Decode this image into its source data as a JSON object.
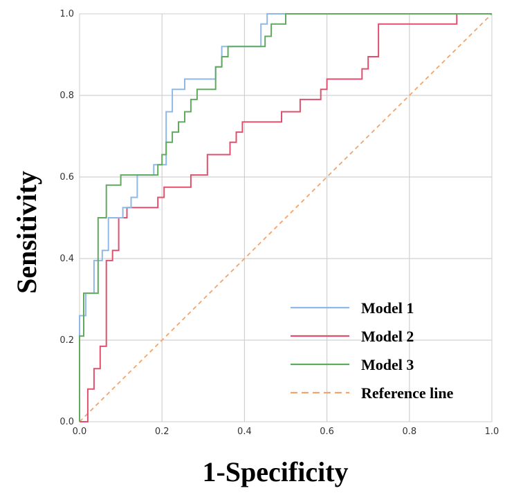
{
  "chart_data": {
    "type": "line",
    "title": "",
    "xlabel": "1-Specificity",
    "ylabel": "Sensitivity",
    "xlim": [
      0,
      1
    ],
    "ylim": [
      0,
      1
    ],
    "grid": true,
    "legend_position": "bottom-right",
    "xticks": [
      "0.0",
      "0.2",
      "0.4",
      "0.6",
      "0.8",
      "1.0"
    ],
    "yticks": [
      "0.0",
      "0.2",
      "0.4",
      "0.6",
      "0.8",
      "1.0"
    ],
    "series": [
      {
        "name": "Model 1",
        "color": "#8fb8e6",
        "dashed": false,
        "points": [
          [
            0,
            0
          ],
          [
            0,
            0.26
          ],
          [
            0.015,
            0.26
          ],
          [
            0.015,
            0.315
          ],
          [
            0.035,
            0.315
          ],
          [
            0.035,
            0.395
          ],
          [
            0.055,
            0.395
          ],
          [
            0.055,
            0.42
          ],
          [
            0.07,
            0.42
          ],
          [
            0.07,
            0.5
          ],
          [
            0.105,
            0.5
          ],
          [
            0.105,
            0.525
          ],
          [
            0.125,
            0.525
          ],
          [
            0.125,
            0.55
          ],
          [
            0.14,
            0.55
          ],
          [
            0.14,
            0.605
          ],
          [
            0.165,
            0.605
          ],
          [
            0.165,
            0.605
          ],
          [
            0.18,
            0.605
          ],
          [
            0.18,
            0.63
          ],
          [
            0.21,
            0.63
          ],
          [
            0.21,
            0.76
          ],
          [
            0.225,
            0.76
          ],
          [
            0.225,
            0.815
          ],
          [
            0.255,
            0.815
          ],
          [
            0.255,
            0.84
          ],
          [
            0.33,
            0.84
          ],
          [
            0.33,
            0.87
          ],
          [
            0.345,
            0.87
          ],
          [
            0.345,
            0.92
          ],
          [
            0.44,
            0.92
          ],
          [
            0.44,
            0.975
          ],
          [
            0.455,
            0.975
          ],
          [
            0.455,
            1.0
          ],
          [
            1.0,
            1.0
          ]
        ]
      },
      {
        "name": "Model 2",
        "color": "#e0506e",
        "dashed": false,
        "points": [
          [
            0,
            0
          ],
          [
            0.02,
            0
          ],
          [
            0.02,
            0.08
          ],
          [
            0.035,
            0.08
          ],
          [
            0.035,
            0.13
          ],
          [
            0.05,
            0.13
          ],
          [
            0.05,
            0.185
          ],
          [
            0.065,
            0.185
          ],
          [
            0.065,
            0.395
          ],
          [
            0.08,
            0.395
          ],
          [
            0.08,
            0.42
          ],
          [
            0.095,
            0.42
          ],
          [
            0.095,
            0.5
          ],
          [
            0.115,
            0.5
          ],
          [
            0.115,
            0.525
          ],
          [
            0.19,
            0.525
          ],
          [
            0.19,
            0.55
          ],
          [
            0.205,
            0.55
          ],
          [
            0.205,
            0.575
          ],
          [
            0.27,
            0.575
          ],
          [
            0.27,
            0.605
          ],
          [
            0.31,
            0.605
          ],
          [
            0.31,
            0.655
          ],
          [
            0.365,
            0.655
          ],
          [
            0.365,
            0.685
          ],
          [
            0.38,
            0.685
          ],
          [
            0.38,
            0.71
          ],
          [
            0.395,
            0.71
          ],
          [
            0.395,
            0.735
          ],
          [
            0.49,
            0.735
          ],
          [
            0.49,
            0.76
          ],
          [
            0.535,
            0.76
          ],
          [
            0.535,
            0.79
          ],
          [
            0.585,
            0.79
          ],
          [
            0.585,
            0.815
          ],
          [
            0.6,
            0.815
          ],
          [
            0.6,
            0.84
          ],
          [
            0.685,
            0.84
          ],
          [
            0.685,
            0.865
          ],
          [
            0.7,
            0.865
          ],
          [
            0.7,
            0.895
          ],
          [
            0.725,
            0.895
          ],
          [
            0.725,
            0.975
          ],
          [
            0.915,
            0.975
          ],
          [
            0.915,
            1.0
          ],
          [
            1.0,
            1.0
          ]
        ]
      },
      {
        "name": "Model 3",
        "color": "#5faa5f",
        "dashed": false,
        "points": [
          [
            0,
            0
          ],
          [
            0,
            0.21
          ],
          [
            0.01,
            0.21
          ],
          [
            0.01,
            0.315
          ],
          [
            0.045,
            0.315
          ],
          [
            0.045,
            0.5
          ],
          [
            0.065,
            0.5
          ],
          [
            0.065,
            0.58
          ],
          [
            0.1,
            0.58
          ],
          [
            0.1,
            0.605
          ],
          [
            0.19,
            0.605
          ],
          [
            0.19,
            0.63
          ],
          [
            0.2,
            0.63
          ],
          [
            0.2,
            0.655
          ],
          [
            0.21,
            0.655
          ],
          [
            0.21,
            0.685
          ],
          [
            0.225,
            0.685
          ],
          [
            0.225,
            0.71
          ],
          [
            0.24,
            0.71
          ],
          [
            0.24,
            0.735
          ],
          [
            0.255,
            0.735
          ],
          [
            0.255,
            0.76
          ],
          [
            0.27,
            0.76
          ],
          [
            0.27,
            0.79
          ],
          [
            0.285,
            0.79
          ],
          [
            0.285,
            0.815
          ],
          [
            0.33,
            0.815
          ],
          [
            0.33,
            0.87
          ],
          [
            0.345,
            0.87
          ],
          [
            0.345,
            0.895
          ],
          [
            0.36,
            0.895
          ],
          [
            0.36,
            0.92
          ],
          [
            0.45,
            0.92
          ],
          [
            0.45,
            0.945
          ],
          [
            0.465,
            0.945
          ],
          [
            0.465,
            0.975
          ],
          [
            0.5,
            0.975
          ],
          [
            0.5,
            1.0
          ],
          [
            1.0,
            1.0
          ]
        ]
      },
      {
        "name": "Reference line",
        "color": "#f4a36a",
        "dashed": true,
        "points": [
          [
            0,
            0
          ],
          [
            1,
            1
          ]
        ]
      }
    ]
  }
}
